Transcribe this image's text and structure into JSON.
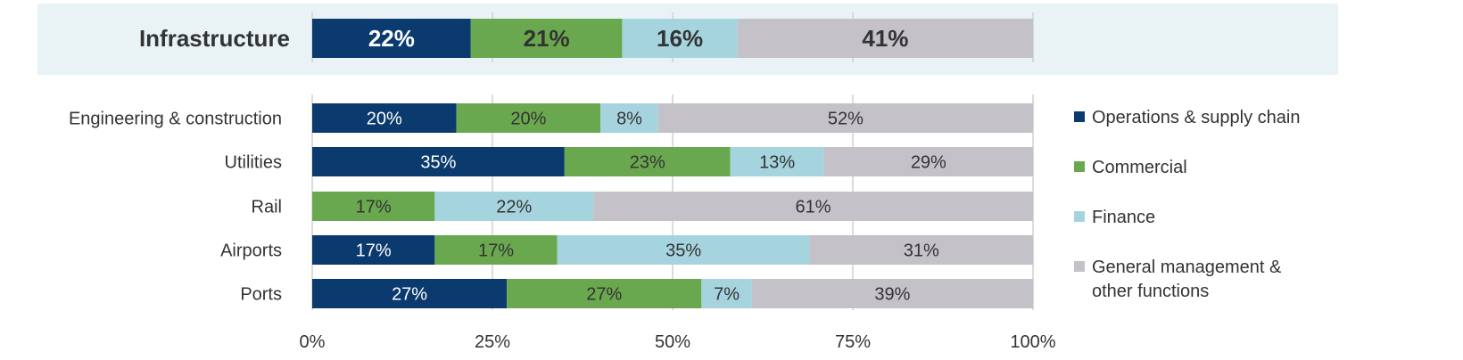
{
  "chart_data": {
    "type": "bar",
    "orientation": "horizontal",
    "stacked": true,
    "xlim": [
      0,
      100
    ],
    "x_ticks": [
      "0%",
      "25%",
      "50%",
      "75%",
      "100%"
    ],
    "grid": true,
    "legend_position": "right",
    "series": [
      {
        "name": "Operations & supply chain",
        "color": "#0b3a6e"
      },
      {
        "name": "Commercial",
        "color": "#6aa84f"
      },
      {
        "name": "Finance",
        "color": "#a6d4de"
      },
      {
        "name": "General management & other functions",
        "color": "#c4c1c8"
      }
    ],
    "header": {
      "category": "Infrastructure",
      "values": [
        22,
        21,
        16,
        41
      ],
      "labels": [
        "22%",
        "21%",
        "16%",
        "41%"
      ],
      "background": "#e9f3f6"
    },
    "rows": [
      {
        "category": "Engineering & construction",
        "values": [
          20,
          20,
          8,
          52
        ],
        "labels": [
          "20%",
          "20%",
          "8%",
          "52%"
        ]
      },
      {
        "category": "Utilities",
        "values": [
          35,
          23,
          13,
          29
        ],
        "labels": [
          "35%",
          "23%",
          "13%",
          "29%"
        ]
      },
      {
        "category": "Rail",
        "values": [
          0,
          17,
          22,
          61
        ],
        "labels": [
          "",
          "17%",
          "22%",
          "61%"
        ]
      },
      {
        "category": "Airports",
        "values": [
          17,
          17,
          35,
          31
        ],
        "labels": [
          "17%",
          "17%",
          "35%",
          "31%"
        ]
      },
      {
        "category": "Ports",
        "values": [
          27,
          27,
          7,
          39
        ],
        "labels": [
          "27%",
          "27%",
          "7%",
          "39%"
        ]
      }
    ]
  }
}
